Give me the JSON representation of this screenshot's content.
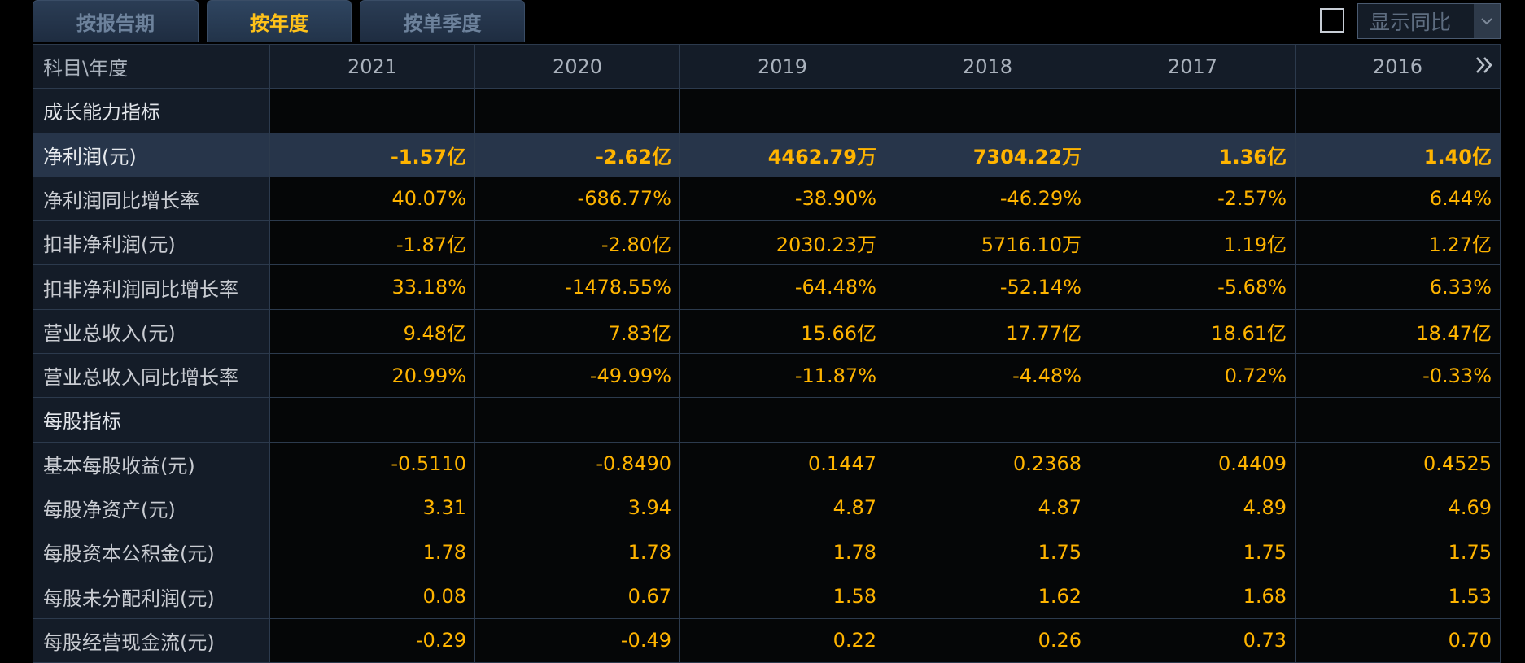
{
  "tabs": [
    {
      "label": "按报告期",
      "active": false
    },
    {
      "label": "按年度",
      "active": true
    },
    {
      "label": "按单季度",
      "active": false
    }
  ],
  "controls": {
    "yoy_checked": false,
    "yoy_label": "显示同比"
  },
  "table": {
    "corner_label": "科目\\年度",
    "years": [
      "2021",
      "2020",
      "2019",
      "2018",
      "2017",
      "2016"
    ],
    "rows": [
      {
        "label": "成长能力指标",
        "type": "section",
        "values": [
          "",
          "",
          "",
          "",
          "",
          ""
        ]
      },
      {
        "label": "净利润(元)",
        "type": "highlight",
        "values": [
          "-1.57亿",
          "-2.62亿",
          "4462.79万",
          "7304.22万",
          "1.36亿",
          "1.40亿"
        ]
      },
      {
        "label": "净利润同比增长率",
        "type": "data",
        "values": [
          "40.07%",
          "-686.77%",
          "-38.90%",
          "-46.29%",
          "-2.57%",
          "6.44%"
        ]
      },
      {
        "label": "扣非净利润(元)",
        "type": "data",
        "values": [
          "-1.87亿",
          "-2.80亿",
          "2030.23万",
          "5716.10万",
          "1.19亿",
          "1.27亿"
        ]
      },
      {
        "label": "扣非净利润同比增长率",
        "type": "data",
        "values": [
          "33.18%",
          "-1478.55%",
          "-64.48%",
          "-52.14%",
          "-5.68%",
          "6.33%"
        ]
      },
      {
        "label": "营业总收入(元)",
        "type": "data",
        "values": [
          "9.48亿",
          "7.83亿",
          "15.66亿",
          "17.77亿",
          "18.61亿",
          "18.47亿"
        ]
      },
      {
        "label": "营业总收入同比增长率",
        "type": "data",
        "values": [
          "20.99%",
          "-49.99%",
          "-11.87%",
          "-4.48%",
          "0.72%",
          "-0.33%"
        ]
      },
      {
        "label": "每股指标",
        "type": "section",
        "values": [
          "",
          "",
          "",
          "",
          "",
          ""
        ]
      },
      {
        "label": "基本每股收益(元)",
        "type": "data",
        "values": [
          "-0.5110",
          "-0.8490",
          "0.1447",
          "0.2368",
          "0.4409",
          "0.4525"
        ]
      },
      {
        "label": "每股净资产(元)",
        "type": "data",
        "values": [
          "3.31",
          "3.94",
          "4.87",
          "4.87",
          "4.89",
          "4.69"
        ]
      },
      {
        "label": "每股资本公积金(元)",
        "type": "data",
        "values": [
          "1.78",
          "1.78",
          "1.78",
          "1.75",
          "1.75",
          "1.75"
        ]
      },
      {
        "label": "每股未分配利润(元)",
        "type": "data",
        "values": [
          "0.08",
          "0.67",
          "1.58",
          "1.62",
          "1.68",
          "1.53"
        ]
      },
      {
        "label": "每股经营现金流(元)",
        "type": "data",
        "values": [
          "-0.29",
          "-0.49",
          "0.22",
          "0.26",
          "0.73",
          "0.70"
        ]
      }
    ]
  },
  "icons": {
    "more": "double-chevron-right-icon",
    "dropdown": "chevron-down-icon"
  },
  "colors": {
    "value_text": "#ffb400",
    "active_tab_text": "#ffc21a",
    "label_bg": "#141c28",
    "highlight_row_bg": "#27354a"
  }
}
